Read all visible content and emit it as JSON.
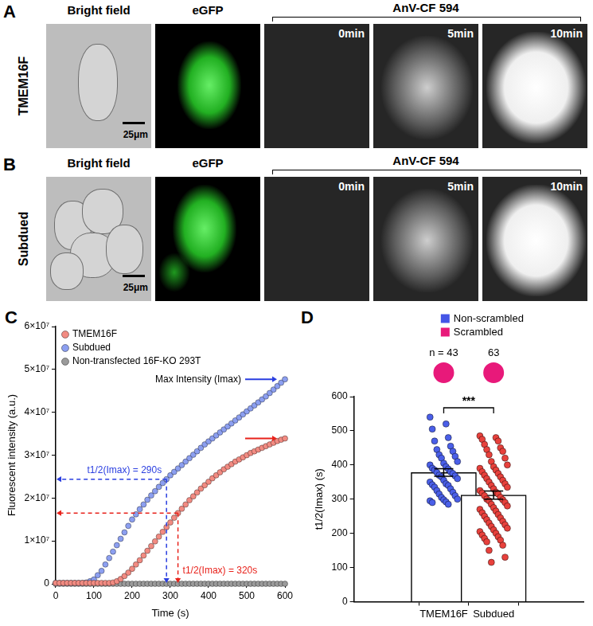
{
  "image_panels": [
    {
      "panel": "A",
      "row_label": "TMEM16F",
      "headers": [
        "Bright field",
        "eGFP",
        "AnV-CF 594"
      ],
      "time_labels": [
        "0min",
        "5min",
        "10min"
      ],
      "scale_bar": "25μm"
    },
    {
      "panel": "B",
      "row_label": "Subdued",
      "headers": [
        "Bright field",
        "eGFP",
        "AnV-CF 594"
      ],
      "time_labels": [
        "0min",
        "5min",
        "10min"
      ],
      "scale_bar": "25μm"
    }
  ],
  "chart_data": [
    {
      "panel": "C",
      "type": "scatter",
      "marker": "circle",
      "x_label": "Time (s)",
      "y_label": "Fluorescent intensity (a.u.)",
      "x": [
        0,
        10,
        20,
        30,
        40,
        50,
        60,
        70,
        80,
        90,
        100,
        110,
        120,
        130,
        140,
        150,
        160,
        170,
        180,
        190,
        200,
        210,
        220,
        230,
        240,
        250,
        260,
        270,
        280,
        290,
        300,
        310,
        320,
        330,
        340,
        350,
        360,
        370,
        380,
        390,
        400,
        410,
        420,
        430,
        440,
        450,
        460,
        470,
        480,
        490,
        500,
        510,
        520,
        530,
        540,
        550,
        560,
        570,
        580,
        590,
        600
      ],
      "xlim": [
        0,
        600
      ],
      "xticks": [
        0,
        100,
        200,
        300,
        400,
        500,
        600
      ],
      "ylim": [
        0,
        60000000
      ],
      "yticks": [
        0,
        {
          "value": 10000000,
          "label": "1×10⁷"
        },
        {
          "value": 20000000,
          "label": "2×10⁷"
        },
        {
          "value": 30000000,
          "label": "3×10⁷"
        },
        {
          "value": 40000000,
          "label": "4×10⁷"
        },
        {
          "value": 50000000,
          "label": "5×10⁷"
        },
        {
          "value": 60000000,
          "label": "6×10⁷"
        }
      ],
      "grid": false,
      "legend": "top-left",
      "series": [
        {
          "name": "TMEM16F",
          "color": "#f28b82",
          "values": [
            200000,
            200000,
            200000,
            200000,
            200000,
            200000,
            200000,
            200000,
            200000,
            200000,
            200000,
            200000,
            200000,
            200000,
            200000,
            300000,
            600000,
            1100000,
            1800000,
            2600000,
            3500000,
            4500000,
            5500000,
            6600000,
            7700000,
            8800000,
            9900000,
            11000000,
            12100000,
            13200000,
            14300000,
            15400000,
            16500000,
            17500000,
            18500000,
            19500000,
            20400000,
            21300000,
            22200000,
            23000000,
            23800000,
            24600000,
            25300000,
            26000000,
            26700000,
            27300000,
            27900000,
            28500000,
            29000000,
            29500000,
            30000000,
            30500000,
            30900000,
            31300000,
            31700000,
            32100000,
            32500000,
            32900000,
            33300000,
            33600000,
            33900000
          ]
        },
        {
          "name": "Subdued",
          "color": "#8c9ff0",
          "values": [
            200000,
            200000,
            200000,
            200000,
            200000,
            200000,
            200000,
            200000,
            300000,
            600000,
            1000000,
            2000000,
            3000000,
            4500000,
            6000000,
            7500000,
            9000000,
            10500000,
            12000000,
            13500000,
            15000000,
            16200000,
            17400000,
            18500000,
            19600000,
            20600000,
            21600000,
            22600000,
            23500000,
            24400000,
            25300000,
            26100000,
            26900000,
            27700000,
            28500000,
            29300000,
            30100000,
            30900000,
            31700000,
            32500000,
            33200000,
            33900000,
            34600000,
            35300000,
            36000000,
            36700000,
            37400000,
            38100000,
            38800000,
            39500000,
            40200000,
            40900000,
            41600000,
            42300000,
            43000000,
            43700000,
            44500000,
            45300000,
            46100000,
            46900000,
            47700000
          ]
        },
        {
          "name": "Non-transfected 16F-KO 293T",
          "color": "#9b9b9b",
          "values": [
            0,
            0,
            0,
            0,
            0,
            0,
            0,
            0,
            0,
            0,
            0,
            0,
            0,
            0,
            0,
            0,
            0,
            0,
            0,
            0,
            0,
            0,
            0,
            0,
            0,
            0,
            0,
            0,
            0,
            0,
            0,
            0,
            0,
            0,
            0,
            0,
            0,
            0,
            0,
            0,
            0,
            0,
            0,
            0,
            0,
            0,
            0,
            0,
            0,
            0,
            0,
            0,
            0,
            0,
            0,
            0,
            0,
            0,
            0,
            0,
            0
          ]
        }
      ],
      "imax_label": "Max Intensity (Imax)",
      "annotations": [
        {
          "name": "Subdued",
          "text": "t1/2(Imax) = 290s",
          "x": 290,
          "y": 24400000,
          "color": "#2a3ee0"
        },
        {
          "name": "TMEM16F",
          "text": "t1/2(Imax) = 320s",
          "x": 320,
          "y": 16500000,
          "color": "#e8221b"
        }
      ]
    },
    {
      "panel": "D",
      "type": "bar",
      "categories": [
        "TMEM16F",
        "Subdued"
      ],
      "values": [
        378,
        312
      ],
      "errors": [
        11,
        12
      ],
      "color": "#ffffff",
      "y_label": "t1/2(Imax) (s)",
      "ylim": [
        0,
        600
      ],
      "yticks": [
        0,
        100,
        200,
        300,
        400,
        500,
        600
      ],
      "grid": false,
      "legend": "top",
      "point_series": [
        {
          "name": "TMEM16F",
          "color": "#4a5fe8",
          "values": [
            540,
            520,
            505,
            480,
            470,
            455,
            445,
            440,
            430,
            425,
            420,
            410,
            405,
            400,
            395,
            390,
            388,
            385,
            380,
            378,
            375,
            370,
            368,
            365,
            360,
            355,
            350,
            345,
            342,
            340,
            335,
            330,
            325,
            320,
            315,
            310,
            305,
            300,
            298,
            295,
            292,
            290,
            285
          ]
        },
        {
          "name": "Subdued",
          "color": "#e8413c",
          "values": [
            485,
            480,
            475,
            470,
            460,
            450,
            445,
            440,
            430,
            420,
            410,
            400,
            395,
            390,
            385,
            380,
            375,
            370,
            365,
            360,
            355,
            350,
            345,
            340,
            335,
            330,
            325,
            320,
            318,
            315,
            310,
            305,
            300,
            298,
            295,
            290,
            285,
            280,
            275,
            270,
            265,
            260,
            255,
            250,
            245,
            240,
            235,
            230,
            225,
            220,
            215,
            210,
            205,
            200,
            195,
            190,
            185,
            180,
            175,
            165,
            150,
            130,
            115
          ]
        }
      ],
      "pie_series": [
        {
          "name": "Non-scrambled",
          "color": "#4455e6",
          "values": [
            0,
            0
          ]
        },
        {
          "name": "Scrambled",
          "color": "#e8197a",
          "values": [
            100,
            100
          ]
        }
      ],
      "sample_sizes": [
        {
          "value": 43,
          "label": "n = 43"
        },
        {
          "value": 63,
          "label": "63"
        }
      ],
      "annotations": [
        {
          "text": "***"
        }
      ]
    }
  ]
}
